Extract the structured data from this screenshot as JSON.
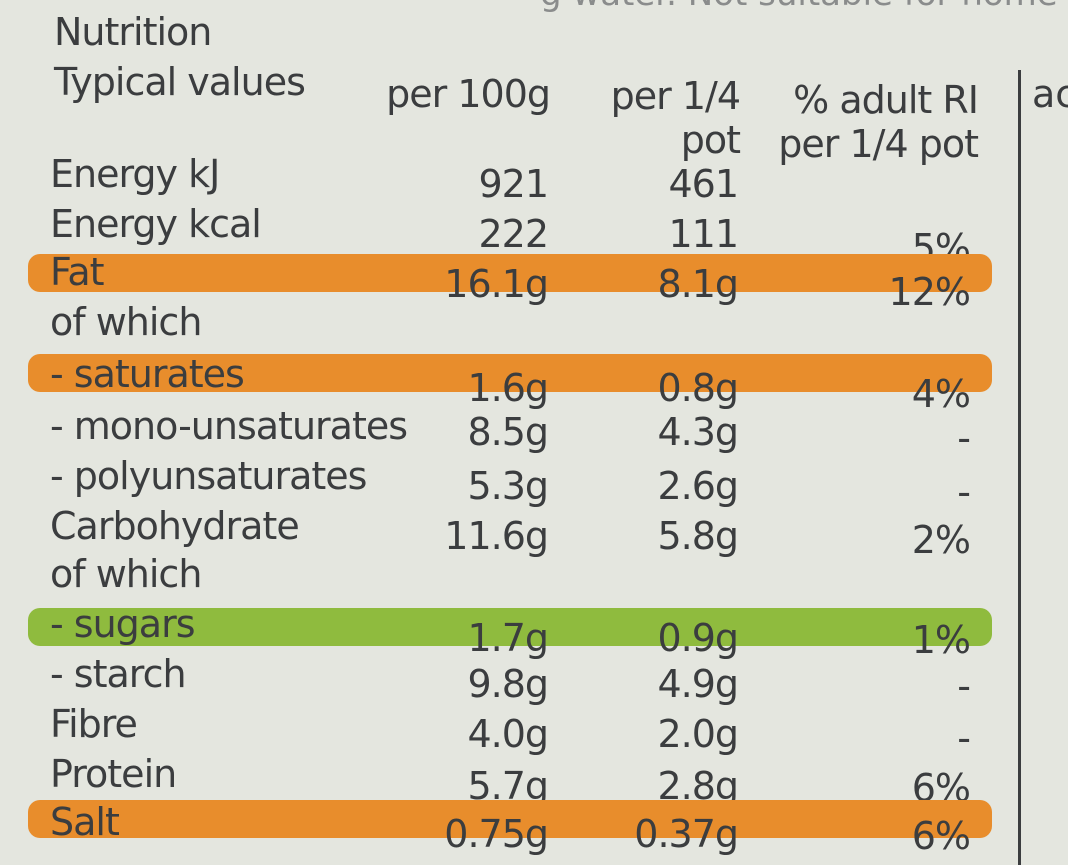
{
  "label": {
    "top_partial": "g water. Not suitable for home",
    "title": "Nutrition",
    "right_partial": "ac",
    "headers": {
      "typical": "Typical values",
      "per100": "per 100g",
      "perpot_1": "per 1/4",
      "perpot_2": "pot",
      "ri_1": "% adult RI",
      "ri_2": "per 1/4 pot"
    },
    "colors": {
      "amber": "#e88d2c",
      "green": "#8fbb3e",
      "text": "#3b3d3f",
      "background": "#e4e6df"
    },
    "rows": [
      {
        "name": "Energy kJ",
        "per100": "921",
        "perpot": "461",
        "ri": ""
      },
      {
        "name": "Energy kcal",
        "per100": "222",
        "perpot": "111",
        "ri": "5%"
      },
      {
        "name": "Fat",
        "per100": "16.1g",
        "perpot": "8.1g",
        "ri": "12%",
        "band": "amber"
      },
      {
        "name": "of which",
        "per100": "",
        "perpot": "",
        "ri": ""
      },
      {
        "name": "- saturates",
        "per100": "1.6g",
        "perpot": "0.8g",
        "ri": "4%",
        "band": "amber"
      },
      {
        "name": "- mono-unsaturates",
        "per100": "8.5g",
        "perpot": "4.3g",
        "ri": "-"
      },
      {
        "name": "- polyunsaturates",
        "per100": "5.3g",
        "perpot": "2.6g",
        "ri": "-"
      },
      {
        "name": "Carbohydrate",
        "per100": "11.6g",
        "perpot": "5.8g",
        "ri": "2%"
      },
      {
        "name": "of which",
        "per100": "",
        "perpot": "",
        "ri": ""
      },
      {
        "name": "- sugars",
        "per100": "1.7g",
        "perpot": "0.9g",
        "ri": "1%",
        "band": "green"
      },
      {
        "name": "- starch",
        "per100": "9.8g",
        "perpot": "4.9g",
        "ri": "-"
      },
      {
        "name": "Fibre",
        "per100": "4.0g",
        "perpot": "2.0g",
        "ri": "-"
      },
      {
        "name": "Protein",
        "per100": "5.7g",
        "perpot": "2.8g",
        "ri": "6%"
      },
      {
        "name": "Salt",
        "per100": "0.75g",
        "perpot": "0.37g",
        "ri": "6%",
        "band": "amber"
      }
    ]
  }
}
